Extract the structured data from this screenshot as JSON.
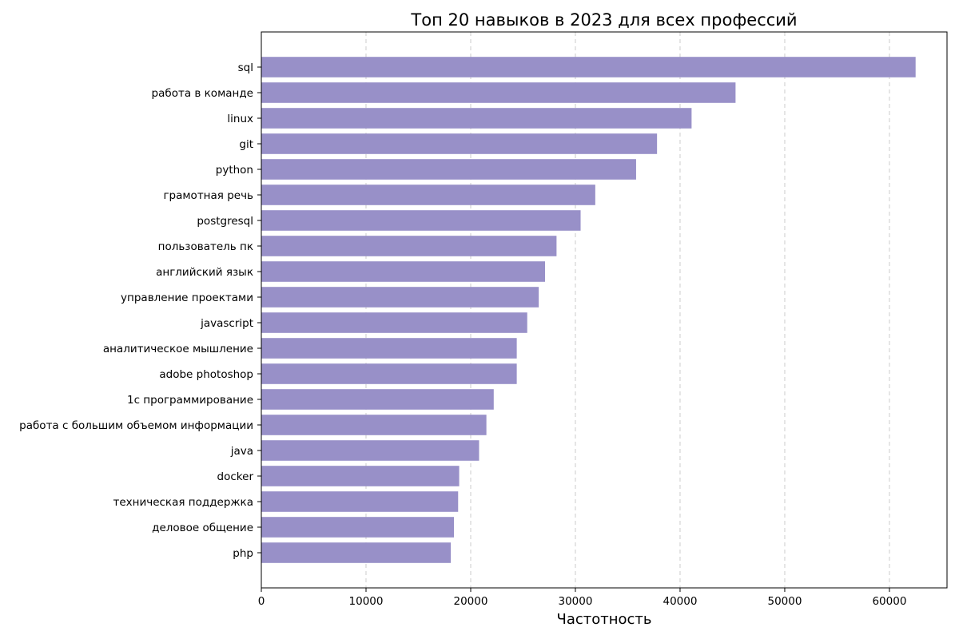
{
  "chart_data": {
    "type": "bar",
    "orientation": "horizontal",
    "title": "Топ 20 навыков в 2023 для всех профессий",
    "xlabel": "Частотность",
    "ylabel": "",
    "xlim": [
      0,
      65500
    ],
    "xticks": [
      0,
      10000,
      20000,
      30000,
      40000,
      50000,
      60000
    ],
    "grid": "x-dashed",
    "bar_color": "#9890c8",
    "categories": [
      "sql",
      "работа в команде",
      "linux",
      "git",
      "python",
      "грамотная речь",
      "postgresql",
      "пользователь пк",
      "английский язык",
      "управление проектами",
      "javascript",
      "аналитическое мышление",
      "adobe photoshop",
      "1с программирование",
      "работа с большим объемом информации",
      "java",
      "docker",
      "техническая поддержка",
      "деловое общение",
      "php"
    ],
    "values": [
      62500,
      45300,
      41100,
      37800,
      35800,
      31900,
      30500,
      28200,
      27100,
      26500,
      25400,
      24400,
      24400,
      22200,
      21500,
      20800,
      18900,
      18800,
      18400,
      18100
    ]
  }
}
